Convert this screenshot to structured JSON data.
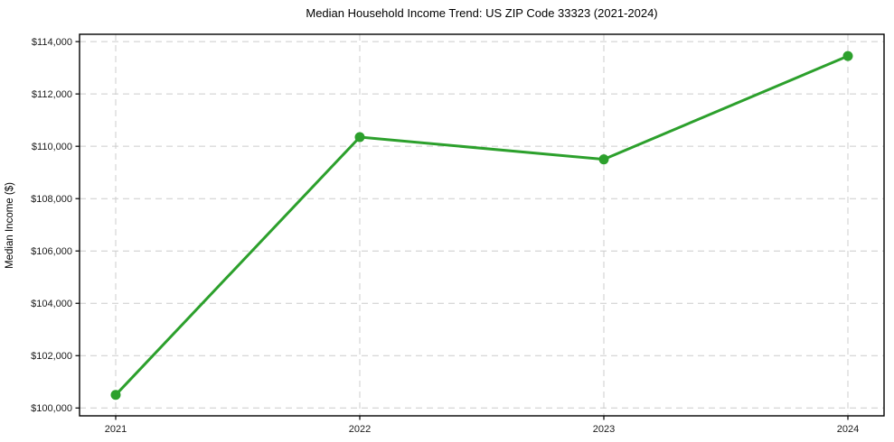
{
  "chart_data": {
    "type": "line",
    "title": "Median Household Income Trend: US ZIP Code 33323 (2021-2024)",
    "xlabel": "",
    "ylabel": "Median Income ($)",
    "categories": [
      "2021",
      "2022",
      "2023",
      "2024"
    ],
    "series": [
      {
        "name": "Median Household Income",
        "values": [
          100500,
          110350,
          109500,
          113450
        ],
        "color": "#2ca02c",
        "marker": "circle"
      }
    ],
    "yticks": [
      {
        "value": 100000,
        "label": "$100,000"
      },
      {
        "value": 102000,
        "label": "$102,000"
      },
      {
        "value": 104000,
        "label": "$104,000"
      },
      {
        "value": 106000,
        "label": "$106,000"
      },
      {
        "value": 108000,
        "label": "$108,000"
      },
      {
        "value": 110000,
        "label": "$110,000"
      },
      {
        "value": 112000,
        "label": "$112,000"
      },
      {
        "value": 114000,
        "label": "$114,000"
      }
    ],
    "ylim": [
      99700,
      114280
    ],
    "grid": {
      "visible": true,
      "style": "dashed",
      "color": "#cccccc"
    },
    "frame_color": "#000000",
    "legend": "none"
  }
}
